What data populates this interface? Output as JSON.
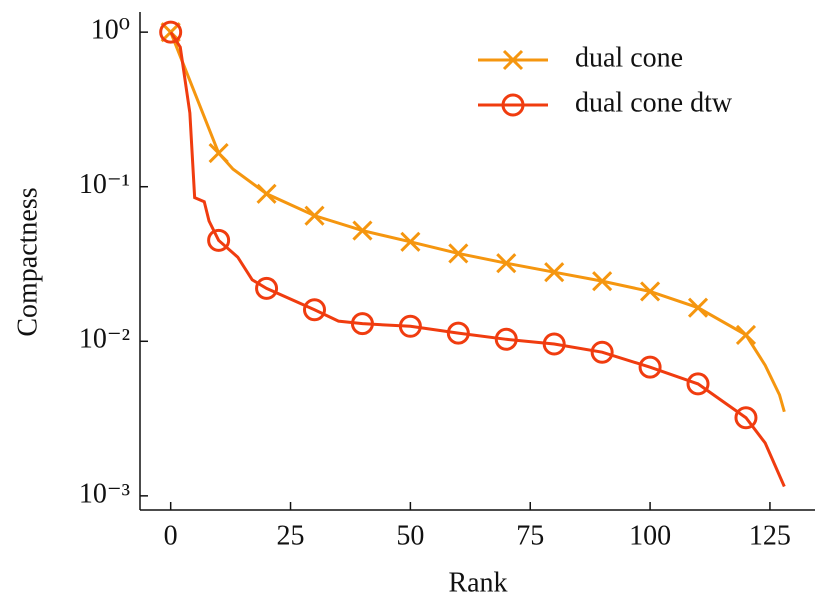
{
  "chart_data": {
    "type": "line",
    "xlabel": "Rank",
    "ylabel": "Compactness",
    "xlim": [
      -6.4,
      134.4
    ],
    "xticks": [
      0,
      25,
      50,
      75,
      100,
      125
    ],
    "ylim": [
      0.00081,
      1.35
    ],
    "yscale": "log",
    "yticks": [
      {
        "value": 1,
        "label": "10⁰"
      },
      {
        "value": 0.1,
        "label": "10⁻¹"
      },
      {
        "value": 0.01,
        "label": "10⁻²"
      },
      {
        "value": 0.001,
        "label": "10⁻³"
      }
    ],
    "marker_every": 10,
    "legend": "upper right",
    "series": [
      {
        "name": "dual cone",
        "color": "#f5960f",
        "marker": "x",
        "x": [
          0,
          10,
          13,
          20,
          30,
          40,
          50,
          60,
          70,
          80,
          90,
          100,
          110,
          120,
          124,
          127,
          128
        ],
        "values": [
          1,
          0.165,
          0.13,
          0.09,
          0.065,
          0.052,
          0.044,
          0.037,
          0.032,
          0.028,
          0.0245,
          0.021,
          0.0165,
          0.011,
          0.007,
          0.0045,
          0.0035
        ]
      },
      {
        "name": "dual cone dtw",
        "color": "#f03c0f",
        "marker": "o",
        "x": [
          0,
          2,
          4,
          5,
          7,
          8,
          10,
          14,
          17,
          20,
          30,
          35,
          40,
          50,
          60,
          70,
          80,
          90,
          100,
          110,
          120,
          124,
          128
        ],
        "values": [
          1,
          0.8,
          0.3,
          0.085,
          0.08,
          0.06,
          0.045,
          0.035,
          0.025,
          0.022,
          0.016,
          0.0135,
          0.013,
          0.0125,
          0.0113,
          0.0103,
          0.0096,
          0.0085,
          0.0068,
          0.0053,
          0.0032,
          0.0022,
          0.00115
        ]
      }
    ]
  }
}
